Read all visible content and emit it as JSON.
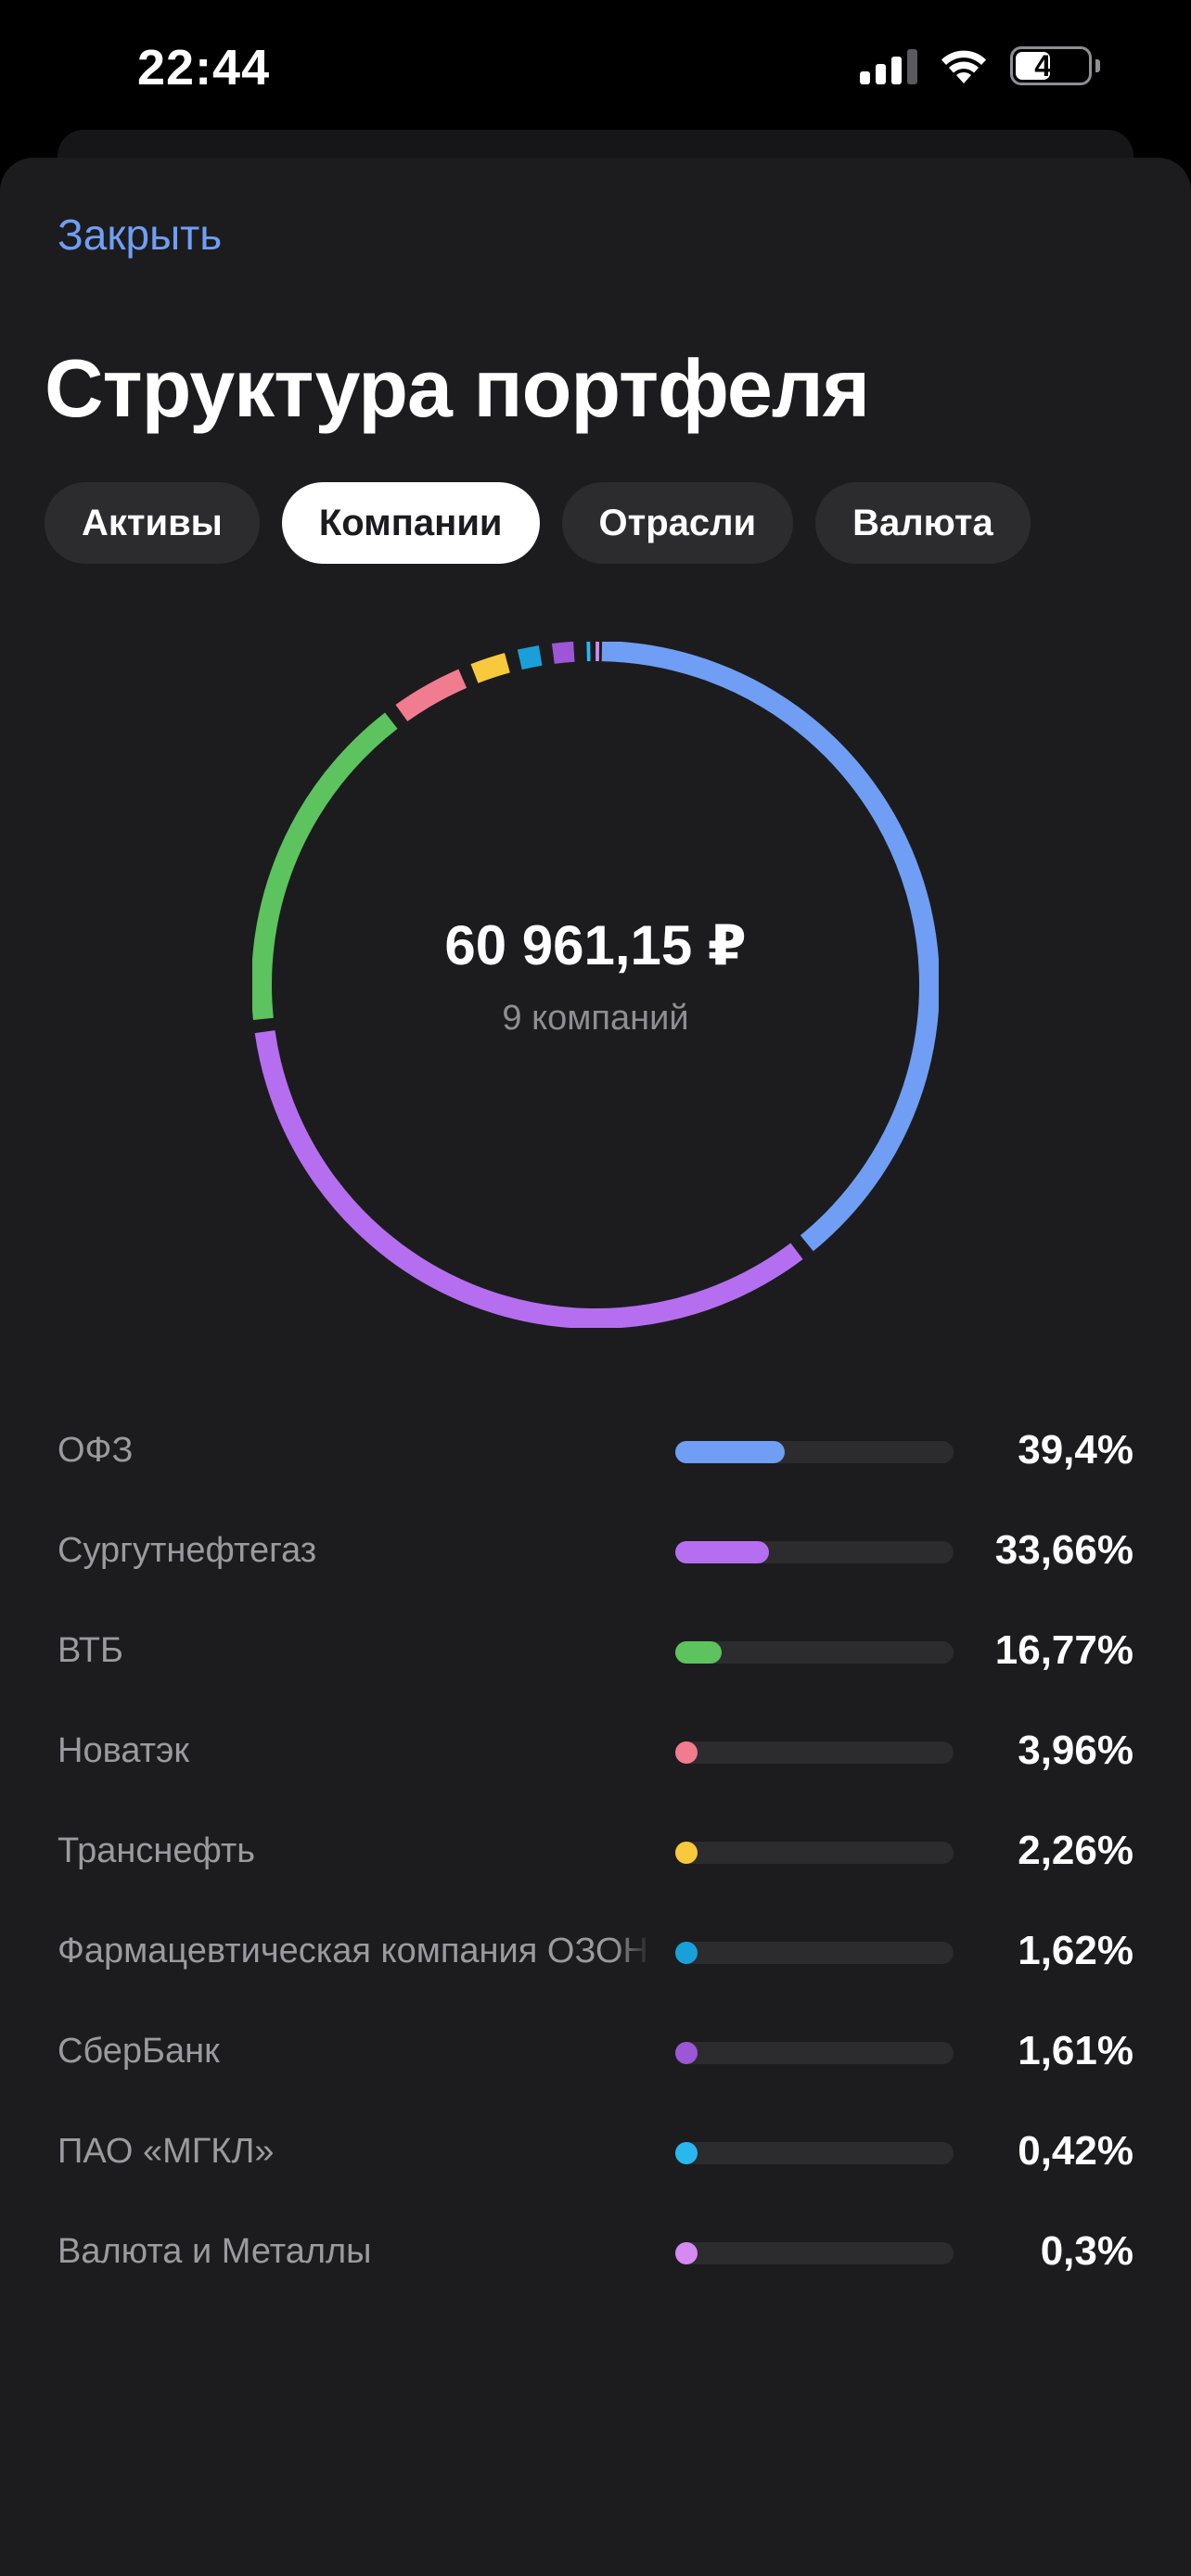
{
  "status_bar": {
    "time": "22:44",
    "battery": "49",
    "battery_level": 0.49
  },
  "header": {
    "close_label": "Закрыть",
    "title": "Структура портфеля"
  },
  "tabs": [
    {
      "label": "Активы",
      "active": false
    },
    {
      "label": "Компании",
      "active": true
    },
    {
      "label": "Отрасли",
      "active": false
    },
    {
      "label": "Валюта",
      "active": false
    }
  ],
  "summary": {
    "total": "60 961,15 ₽",
    "subtitle": "9 компаний"
  },
  "chart_data": {
    "type": "pie",
    "categories": [
      "ОФЗ",
      "Сургутнефтегаз",
      "ВТБ",
      "Новатэк",
      "Транснефть",
      "Фармацевтическая компания ОЗОН",
      "СберБанк",
      "ПАО «МГКЛ»",
      "Валюта и Металлы"
    ],
    "values": [
      39.4,
      33.66,
      16.77,
      3.96,
      2.26,
      1.62,
      1.61,
      0.42,
      0.3
    ],
    "labels": [
      "39,4%",
      "33,66%",
      "16,77%",
      "3,96%",
      "2,26%",
      "1,62%",
      "1,61%",
      "0,42%",
      "0,3%"
    ],
    "colors": [
      "#6f9ef4",
      "#b56ef0",
      "#5cc35e",
      "#f17c8f",
      "#f8c93c",
      "#1aa0d8",
      "#9d56d6",
      "#28b8ee",
      "#d48af2"
    ]
  }
}
